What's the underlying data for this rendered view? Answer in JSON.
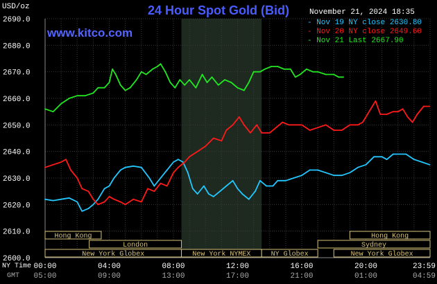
{
  "header": {
    "title": "24 Hour Spot Gold (Bid)",
    "unit": "USD/oz",
    "website": "www.kitco.com",
    "datetime": "November 21, 2024 18:35"
  },
  "legend": [
    {
      "label": "Nov 19 NY close 2630.80",
      "color": "#22c8ff"
    },
    {
      "label": "Nov 20 NY close 2649.60",
      "color": "#ff1a1a"
    },
    {
      "label": "Nov 21 Last 2667.90",
      "color": "#22e822"
    }
  ],
  "axis_labels": {
    "ny_time": "NY Time",
    "gmt": "GMT"
  },
  "sessions": [
    {
      "label": "Hong Kong",
      "row": 0,
      "start_hour": 0,
      "end_hour": 3.5
    },
    {
      "label": "London",
      "row": 1,
      "start_hour": 2.75,
      "end_hour": 8.5
    },
    {
      "label": "New York Globex",
      "row": 2,
      "start_hour": 0,
      "end_hour": 8.5
    },
    {
      "label": "New York NYMEX",
      "row": 2,
      "start_hour": 8.5,
      "end_hour": 13.5
    },
    {
      "label": "NY Globex",
      "row": 2,
      "start_hour": 13.5,
      "end_hour": 17
    },
    {
      "label": "Hong Kong",
      "row": 0,
      "start_hour": 19,
      "end_hour": 24
    },
    {
      "label": "Sydney",
      "row": 1,
      "start_hour": 17,
      "end_hour": 24
    },
    {
      "label": "New York Globex",
      "row": 2,
      "start_hour": 18,
      "end_hour": 24
    }
  ],
  "chart_data": {
    "type": "line",
    "title": "24 Hour Spot Gold (Bid)",
    "ylabel": "USD/oz",
    "ylim": [
      2600,
      2690
    ],
    "yticks": [
      "2600.0",
      "2610.0",
      "2620.0",
      "2630.0",
      "2640.0",
      "2650.0",
      "2660.0",
      "2670.0",
      "2680.0",
      "2690.0"
    ],
    "xlim": [
      0,
      24
    ],
    "xticks_ny": [
      "00:00",
      "04:00",
      "08:00",
      "12:00",
      "16:00",
      "20:00",
      "23:59"
    ],
    "xticks_gmt": [
      "05:00",
      "09:00",
      "13:00",
      "17:00",
      "21:00",
      "01:00",
      "04:59"
    ],
    "xtick_hours": [
      0,
      4,
      8,
      12,
      16,
      20,
      23.98
    ],
    "highlight_hours": [
      8.5,
      13.5
    ],
    "grid": true,
    "legend_position": "top-right",
    "series": [
      {
        "name": "Nov 19 NY close 2630.80",
        "color": "#22c8ff",
        "points": [
          [
            0,
            2622
          ],
          [
            0.5,
            2621.5
          ],
          [
            1,
            2622
          ],
          [
            1.5,
            2622.5
          ],
          [
            2,
            2621
          ],
          [
            2.3,
            2617.5
          ],
          [
            2.7,
            2618.5
          ],
          [
            3,
            2620
          ],
          [
            3.3,
            2622
          ],
          [
            3.7,
            2626
          ],
          [
            4,
            2627
          ],
          [
            4.3,
            2630
          ],
          [
            4.7,
            2633
          ],
          [
            5,
            2634
          ],
          [
            5.5,
            2634.5
          ],
          [
            6,
            2634
          ],
          [
            6.5,
            2630
          ],
          [
            6.8,
            2627
          ],
          [
            7.2,
            2630
          ],
          [
            7.6,
            2633
          ],
          [
            8,
            2636
          ],
          [
            8.3,
            2637
          ],
          [
            8.6,
            2636
          ],
          [
            8.9,
            2632
          ],
          [
            9.2,
            2626
          ],
          [
            9.5,
            2624
          ],
          [
            9.9,
            2627
          ],
          [
            10.2,
            2624
          ],
          [
            10.5,
            2623
          ],
          [
            10.9,
            2625
          ],
          [
            11.3,
            2627
          ],
          [
            11.7,
            2629
          ],
          [
            12,
            2626
          ],
          [
            12.3,
            2624
          ],
          [
            12.7,
            2622
          ],
          [
            13.1,
            2625
          ],
          [
            13.4,
            2629
          ],
          [
            13.8,
            2627
          ],
          [
            14.2,
            2627
          ],
          [
            14.5,
            2629
          ],
          [
            15,
            2629
          ],
          [
            15.5,
            2630
          ],
          [
            16,
            2631
          ],
          [
            16.5,
            2633
          ],
          [
            17,
            2633
          ],
          [
            17.5,
            2632
          ],
          [
            18,
            2631
          ],
          [
            18.5,
            2631
          ],
          [
            19,
            2632
          ],
          [
            19.5,
            2634
          ],
          [
            20,
            2635
          ],
          [
            20.5,
            2638
          ],
          [
            21,
            2638
          ],
          [
            21.3,
            2637
          ],
          [
            21.7,
            2639
          ],
          [
            22,
            2639
          ],
          [
            22.5,
            2639
          ],
          [
            23,
            2637
          ],
          [
            23.5,
            2636
          ],
          [
            23.98,
            2635
          ]
        ]
      },
      {
        "name": "Nov 20 NY close 2649.60",
        "color": "#ff1a1a",
        "points": [
          [
            0,
            2634
          ],
          [
            0.5,
            2635
          ],
          [
            1,
            2636
          ],
          [
            1.3,
            2637
          ],
          [
            1.6,
            2633
          ],
          [
            2,
            2630
          ],
          [
            2.3,
            2626
          ],
          [
            2.7,
            2625
          ],
          [
            3,
            2622
          ],
          [
            3.3,
            2620
          ],
          [
            3.7,
            2621
          ],
          [
            4,
            2623
          ],
          [
            4.3,
            2622
          ],
          [
            4.7,
            2621
          ],
          [
            5,
            2620
          ],
          [
            5.5,
            2622
          ],
          [
            6,
            2621
          ],
          [
            6.4,
            2626
          ],
          [
            6.8,
            2625
          ],
          [
            7.2,
            2628
          ],
          [
            7.6,
            2627
          ],
          [
            8,
            2632
          ],
          [
            8.3,
            2634
          ],
          [
            8.7,
            2636
          ],
          [
            9,
            2638
          ],
          [
            9.5,
            2640
          ],
          [
            10,
            2642
          ],
          [
            10.5,
            2645
          ],
          [
            11,
            2644
          ],
          [
            11.3,
            2648
          ],
          [
            11.7,
            2650
          ],
          [
            12.1,
            2653
          ],
          [
            12.4,
            2650
          ],
          [
            12.8,
            2647
          ],
          [
            13.2,
            2650
          ],
          [
            13.5,
            2647
          ],
          [
            14,
            2647
          ],
          [
            14.4,
            2649
          ],
          [
            14.8,
            2651
          ],
          [
            15.2,
            2650
          ],
          [
            15.6,
            2650
          ],
          [
            16,
            2650
          ],
          [
            16.5,
            2648
          ],
          [
            17,
            2649
          ],
          [
            17.5,
            2650
          ],
          [
            18,
            2648
          ],
          [
            18.5,
            2648
          ],
          [
            19,
            2650
          ],
          [
            19.5,
            2650
          ],
          [
            19.8,
            2651
          ],
          [
            20.1,
            2654
          ],
          [
            20.4,
            2657
          ],
          [
            20.6,
            2659
          ],
          [
            20.9,
            2654
          ],
          [
            21.3,
            2654
          ],
          [
            21.7,
            2655
          ],
          [
            22,
            2655
          ],
          [
            22.3,
            2656
          ],
          [
            22.6,
            2653
          ],
          [
            22.9,
            2651
          ],
          [
            23.2,
            2654
          ],
          [
            23.6,
            2657
          ],
          [
            23.98,
            2657
          ]
        ]
      },
      {
        "name": "Nov 21 Last 2667.90",
        "color": "#22e822",
        "points": [
          [
            0,
            2656
          ],
          [
            0.5,
            2655
          ],
          [
            1,
            2658
          ],
          [
            1.5,
            2660
          ],
          [
            2,
            2661
          ],
          [
            2.5,
            2661
          ],
          [
            3,
            2662
          ],
          [
            3.3,
            2664
          ],
          [
            3.7,
            2664
          ],
          [
            4,
            2666
          ],
          [
            4.2,
            2671
          ],
          [
            4.4,
            2669
          ],
          [
            4.7,
            2665
          ],
          [
            5,
            2663
          ],
          [
            5.3,
            2664
          ],
          [
            5.7,
            2667
          ],
          [
            6,
            2670
          ],
          [
            6.3,
            2669
          ],
          [
            6.7,
            2671
          ],
          [
            7,
            2672
          ],
          [
            7.2,
            2673
          ],
          [
            7.5,
            2670
          ],
          [
            7.8,
            2666
          ],
          [
            8.1,
            2664
          ],
          [
            8.4,
            2667
          ],
          [
            8.7,
            2665
          ],
          [
            9,
            2667
          ],
          [
            9.4,
            2664
          ],
          [
            9.8,
            2669
          ],
          [
            10.1,
            2666
          ],
          [
            10.4,
            2668
          ],
          [
            10.8,
            2665
          ],
          [
            11.2,
            2667
          ],
          [
            11.6,
            2666
          ],
          [
            12,
            2664
          ],
          [
            12.4,
            2663
          ],
          [
            12.7,
            2666
          ],
          [
            13,
            2670
          ],
          [
            13.4,
            2670
          ],
          [
            13.7,
            2671
          ],
          [
            14.1,
            2672
          ],
          [
            14.5,
            2672
          ],
          [
            14.9,
            2671
          ],
          [
            15.3,
            2671
          ],
          [
            15.6,
            2668
          ],
          [
            15.9,
            2669
          ],
          [
            16.3,
            2671
          ],
          [
            16.7,
            2670
          ],
          [
            17,
            2670
          ],
          [
            17.5,
            2669
          ],
          [
            18,
            2669
          ],
          [
            18.3,
            2668
          ],
          [
            18.6,
            2668
          ]
        ]
      }
    ]
  }
}
